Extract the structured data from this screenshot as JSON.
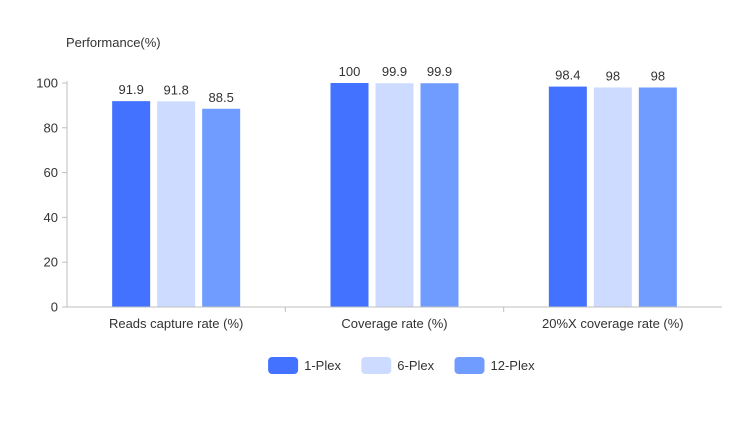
{
  "chart_data": {
    "type": "bar",
    "ylabel": "Performance(%)",
    "xlabel": "",
    "categories": [
      "Reads capture rate (%)",
      "Coverage rate (%)",
      "20%X coverage rate (%)"
    ],
    "series": [
      {
        "name": "1-Plex",
        "values": [
          91.9,
          100,
          98.4
        ],
        "color": "#4272ff"
      },
      {
        "name": "6-Plex",
        "values": [
          91.8,
          99.9,
          98
        ],
        "color": "#ccdbff"
      },
      {
        "name": "12-Plex",
        "values": [
          88.5,
          99.9,
          98
        ],
        "color": "#709cff"
      }
    ],
    "data_labels": [
      [
        "91.9",
        "100",
        "98.4"
      ],
      [
        "91.8",
        "99.9",
        "98"
      ],
      [
        "88.5",
        "99.9",
        "98"
      ]
    ],
    "yticks": [
      0,
      20,
      40,
      60,
      80,
      100
    ],
    "ylim": [
      0,
      100
    ],
    "grid": false,
    "legend_position": "bottom-center",
    "axis_color": "#bfbfbf",
    "text_color": "#333333"
  }
}
